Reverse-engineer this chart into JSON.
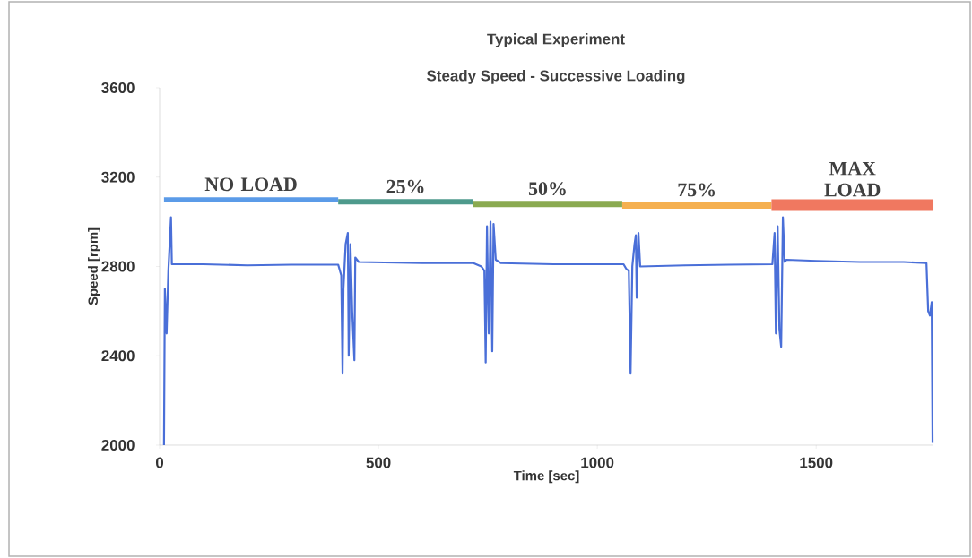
{
  "chart_data": {
    "type": "line",
    "title": "Typical Experiment",
    "subtitle": "Steady Speed - Successive Loading",
    "xlabel": "Time [sec]",
    "ylabel": "Speed [rpm]",
    "xlim": [
      0,
      1768
    ],
    "ylim": [
      2000,
      3600
    ],
    "xticks": [
      0,
      500,
      1000,
      1500
    ],
    "yticks": [
      2000,
      2400,
      2800,
      3200,
      3600
    ],
    "grid": false,
    "legend": false,
    "marker": "none",
    "line_style": "solid",
    "series": [
      {
        "color": "#4a6fd8",
        "x": [
          10,
          12,
          16,
          20,
          26,
          28,
          100,
          200,
          300,
          408,
          415,
          418,
          420,
          425,
          430,
          432,
          436,
          440,
          445,
          447,
          455,
          600,
          717,
          735,
          742,
          745,
          748,
          752,
          756,
          760,
          763,
          768,
          780,
          900,
          1060,
          1066,
          1072,
          1076,
          1080,
          1085,
          1088,
          1090,
          1094,
          1098,
          1200,
          1300,
          1400,
          1405,
          1408,
          1412,
          1416,
          1420,
          1424,
          1428,
          1432,
          1500,
          1600,
          1700,
          1752,
          1756,
          1760,
          1764,
          1766
        ],
        "values": [
          2000,
          2700,
          2500,
          2780,
          3020,
          2810,
          2810,
          2805,
          2808,
          2808,
          2760,
          2320,
          2700,
          2900,
          2950,
          2400,
          2900,
          2600,
          2380,
          2840,
          2820,
          2815,
          2815,
          2800,
          2780,
          2370,
          2980,
          2500,
          3000,
          2420,
          2990,
          2830,
          2815,
          2810,
          2810,
          2790,
          2780,
          2320,
          2800,
          2900,
          2940,
          2660,
          2950,
          2800,
          2805,
          2808,
          2810,
          2950,
          2500,
          2980,
          2520,
          2440,
          3020,
          2820,
          2830,
          2825,
          2820,
          2820,
          2815,
          2600,
          2580,
          2640,
          2010
        ]
      },
      {
        "name": "NO LOAD",
        "color": "#5b9be8",
        "x": [
          10,
          408
        ],
        "values": [
          3100,
          3100
        ]
      },
      {
        "name": "25%",
        "color": "#4e9a8c",
        "x": [
          408,
          717
        ],
        "values": [
          3090,
          3090
        ]
      },
      {
        "name": "50%",
        "color": "#8aaa50",
        "x": [
          717,
          1057
        ],
        "values": [
          3080,
          3080
        ]
      },
      {
        "name": "75%",
        "color": "#f5b050",
        "x": [
          1057,
          1398
        ],
        "values": [
          3075,
          3075
        ]
      },
      {
        "name": "MAX LOAD",
        "color": "#f07860",
        "x": [
          1398,
          1768
        ],
        "values": [
          3075,
          3075
        ]
      }
    ]
  }
}
